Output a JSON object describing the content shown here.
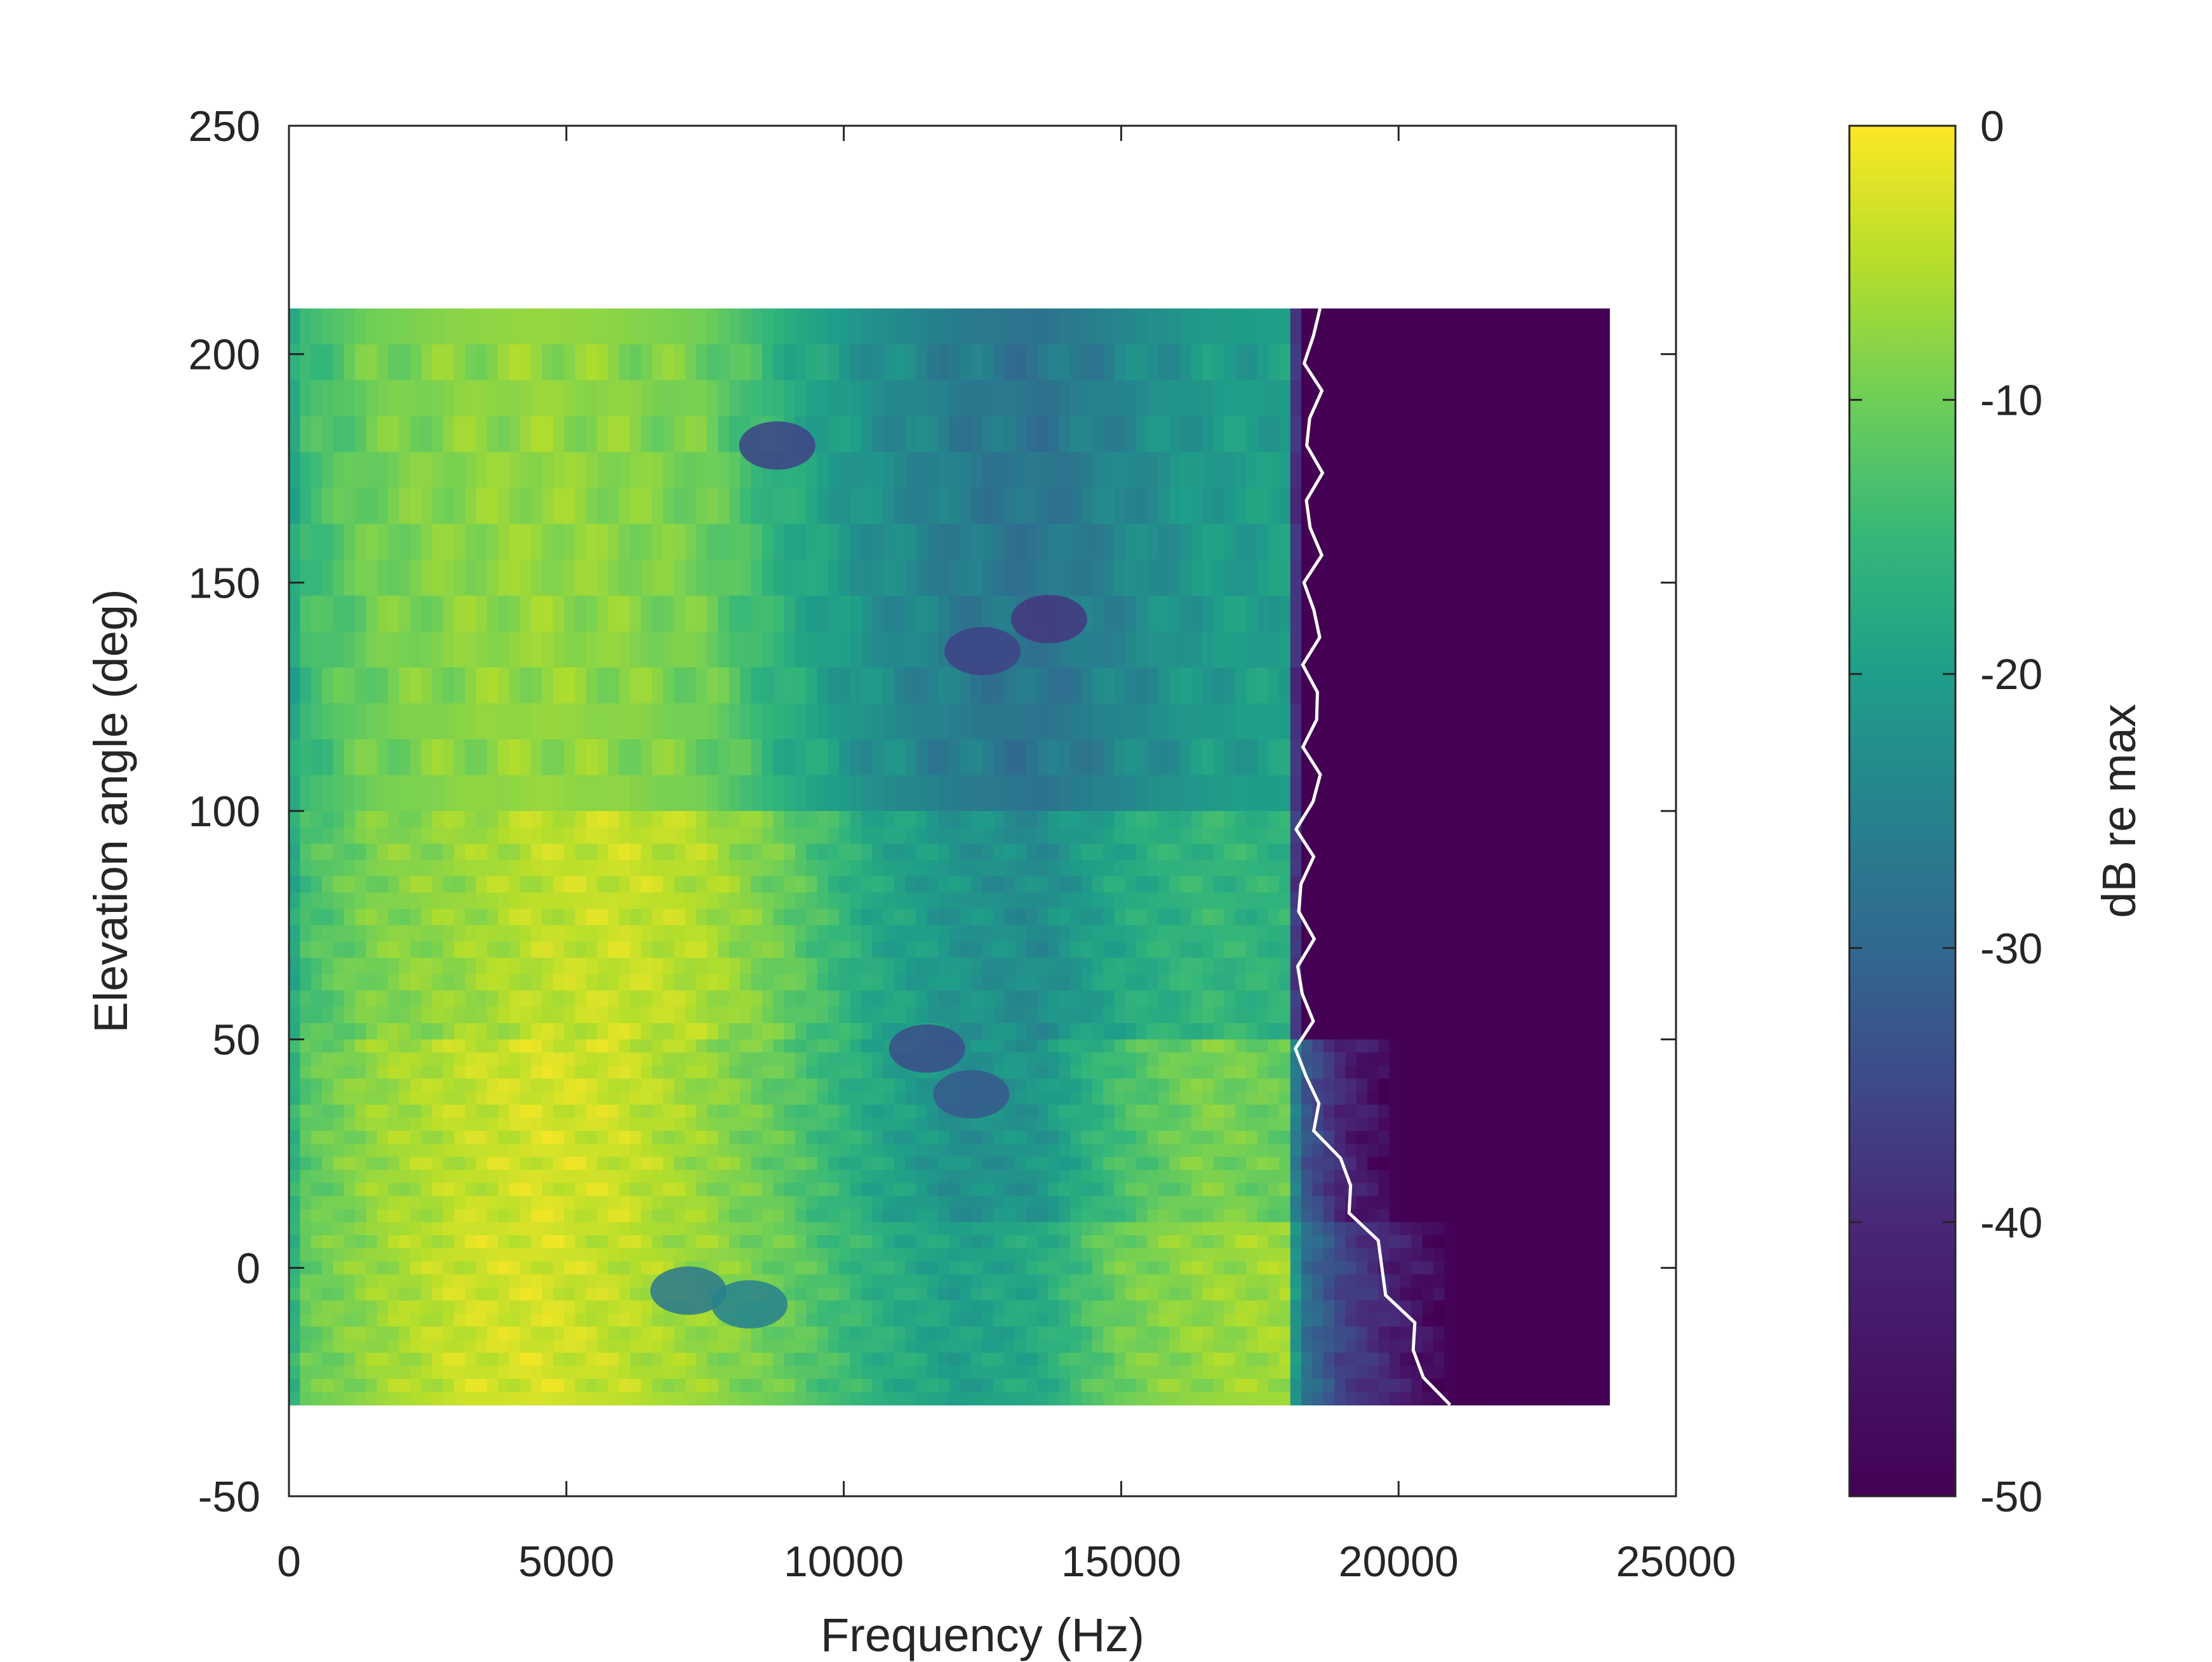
{
  "chart_data": {
    "type": "heatmap",
    "title": "",
    "xlabel": "Frequency (Hz)",
    "ylabel": "Elevation angle (deg)",
    "colorbar_label": "dB re max",
    "xlim": [
      0,
      25000
    ],
    "ylim": [
      -50,
      250
    ],
    "clim": [
      -50,
      0
    ],
    "x_ticks": [
      0,
      5000,
      10000,
      15000,
      20000,
      25000
    ],
    "x_tick_labels": [
      "0",
      "5000",
      "10000",
      "15000",
      "20000",
      "25000"
    ],
    "y_ticks": [
      -50,
      0,
      50,
      100,
      150,
      200,
      250
    ],
    "y_tick_labels": [
      "-50",
      "0",
      "50",
      "100",
      "150",
      "200",
      "250"
    ],
    "c_ticks": [
      0,
      -10,
      -20,
      -30,
      -40,
      -50
    ],
    "c_tick_labels": [
      "0",
      "-10",
      "-20",
      "-30",
      "-40",
      "-50"
    ],
    "colormap": "viridis",
    "data_extent": {
      "x": [
        0,
        23800
      ],
      "y": [
        -30,
        210
      ]
    },
    "frequency_nodes_hz": [
      0,
      300,
      1500,
      3000,
      4500,
      6000,
      7500,
      9000,
      10500,
      12000,
      13500,
      15000,
      16500,
      18000,
      18200,
      19000,
      20000,
      21000,
      22500,
      23800
    ],
    "elevation_bands": [
      {
        "label": "elevation 210 to 100 deg",
        "y": [
          100,
          210
        ],
        "db": [
          -22,
          -16,
          -11,
          -9,
          -8,
          -9,
          -11,
          -19,
          -25,
          -29,
          -31,
          -27,
          -23,
          -22,
          -50,
          -50,
          -50,
          -50,
          -50,
          -50
        ]
      },
      {
        "label": "elevation 100 to 50 deg",
        "y": [
          50,
          100
        ],
        "db": [
          -22,
          -15,
          -10,
          -8,
          -5,
          -4,
          -6,
          -12,
          -20,
          -24,
          -26,
          -20,
          -17,
          -18,
          -50,
          -50,
          -50,
          -50,
          -50,
          -50
        ]
      },
      {
        "label": "elevation 50 to 10 deg",
        "y": [
          10,
          50
        ],
        "db": [
          -20,
          -13,
          -8,
          -5,
          -3,
          -4,
          -8,
          -13,
          -20,
          -25,
          -24,
          -15,
          -10,
          -12,
          -35,
          -45,
          -50,
          -50,
          -50,
          -50
        ]
      },
      {
        "label": "elevation 10 to -30 deg",
        "y": [
          -30,
          10
        ],
        "db": [
          -20,
          -12,
          -8,
          -4,
          -3,
          -5,
          -8,
          -12,
          -18,
          -22,
          -20,
          -11,
          -8,
          -7,
          -30,
          -40,
          -46,
          -50,
          -50,
          -50
        ]
      }
    ],
    "dark_spots": [
      {
        "f": 8800,
        "el": 180,
        "db": -40
      },
      {
        "f": 12500,
        "el": 135,
        "db": -40
      },
      {
        "f": 13700,
        "el": 142,
        "db": -42
      },
      {
        "f": 11500,
        "el": 48,
        "db": -38
      },
      {
        "f": 12300,
        "el": 38,
        "db": -36
      },
      {
        "f": 7200,
        "el": -5,
        "db": -30
      },
      {
        "f": 8300,
        "el": -8,
        "db": -28
      }
    ]
  }
}
